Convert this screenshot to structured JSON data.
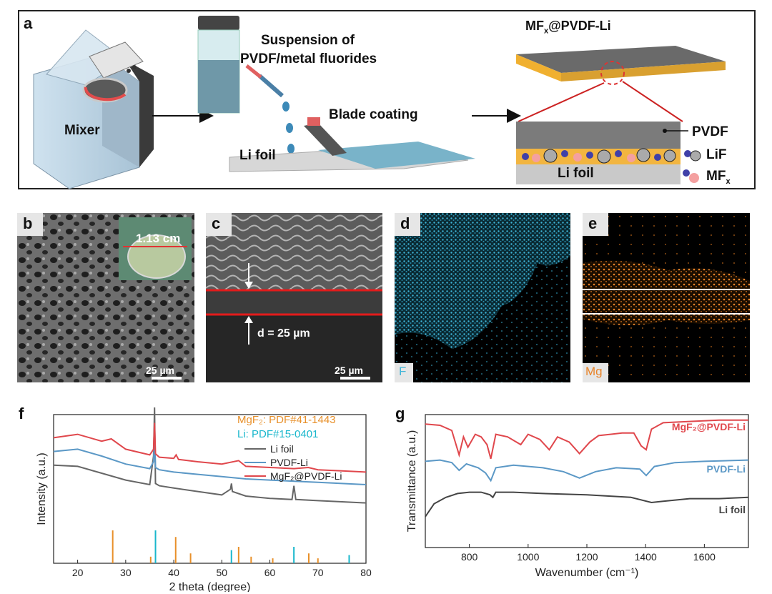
{
  "panel_a": {
    "letter": "a",
    "mixer_label": "Mixer",
    "suspension_label_line1": "Suspension of",
    "suspension_label_line2": "PVDF/metal fluorides",
    "blade_label": "Blade coating",
    "li_foil_label": "Li foil",
    "product_title": "MF",
    "product_title_sub": "x",
    "product_title_rest": "@PVDF-Li",
    "pvdf_label": "PVDF",
    "lif_label": "LiF",
    "mfx_label": "MF",
    "mfx_sub": "x",
    "zoom_li_foil": "Li foil"
  },
  "panel_b": {
    "letter": "b",
    "inset_label": "1.13 cm",
    "scale": "25 µm"
  },
  "panel_c": {
    "letter": "c",
    "thickness": "d = 25 µm",
    "scale": "25 µm"
  },
  "panel_d": {
    "letter": "d",
    "element": "F"
  },
  "panel_e": {
    "letter": "e",
    "element": "Mg"
  },
  "panel_f": {
    "letter": "f"
  },
  "panel_g": {
    "letter": "g"
  },
  "chart_data": [
    {
      "type": "line",
      "panel": "f",
      "xlabel": "2 theta (degree)",
      "ylabel": "Intensity (a.u.)",
      "xlim": [
        15,
        80
      ],
      "xticks": [
        20,
        30,
        40,
        50,
        60,
        70,
        80
      ],
      "legend_position": "top-right",
      "ref_legend": [
        {
          "name": "MgF₂: PDF#41-1443",
          "color": "#e8902a"
        },
        {
          "name": "Li: PDF#15-0401",
          "color": "#19b7cc"
        }
      ],
      "series": [
        {
          "name": "Li foil",
          "color": "#666666",
          "x": [
            15,
            20,
            25,
            30,
            35,
            35.8,
            36,
            36.2,
            37,
            40,
            45,
            50,
            51.8,
            52,
            52.2,
            55,
            60,
            64.6,
            65,
            65.4,
            70,
            75,
            80
          ],
          "y": [
            5.2,
            5.1,
            4.5,
            3.9,
            3.5,
            6,
            10.3,
            3.6,
            3.4,
            3.2,
            2.9,
            2.6,
            3.1,
            3.6,
            2.9,
            2.5,
            2.3,
            2.2,
            3.4,
            2.2,
            2.1,
            2.0,
            1.9
          ]
        },
        {
          "name": "PVDF-Li",
          "color": "#5b98c6",
          "x": [
            15,
            20,
            25,
            30,
            35,
            35.8,
            36,
            36.2,
            37,
            40,
            45,
            50,
            55,
            60,
            65,
            70,
            75,
            80
          ],
          "y": [
            6.4,
            6.6,
            6.0,
            5.3,
            4.9,
            5.5,
            8.0,
            5.0,
            4.8,
            4.6,
            4.4,
            4.2,
            4.0,
            3.9,
            3.8,
            3.7,
            3.6,
            3.5
          ]
        },
        {
          "name": "MgF₂@PVDF-Li",
          "color": "#e0474c",
          "x": [
            15,
            20,
            25,
            27,
            30,
            35,
            35.8,
            36,
            36.2,
            37,
            40,
            40.5,
            41,
            45,
            50,
            53.5,
            55,
            60,
            65,
            68,
            70,
            75,
            80
          ],
          "y": [
            7.6,
            7.9,
            7.3,
            7.5,
            6.6,
            6.1,
            6.6,
            8.9,
            6.2,
            5.9,
            5.8,
            6.1,
            5.7,
            5.5,
            5.3,
            5.6,
            5.1,
            5.0,
            4.9,
            5.0,
            4.8,
            4.7,
            4.6
          ]
        }
      ],
      "reference_lines": {
        "MgF2": {
          "x": [
            27.3,
            35.2,
            40.4,
            43.5,
            53.5,
            56.1,
            60.6,
            68.1,
            70.0
          ],
          "h": [
            1.0,
            0.2,
            0.8,
            0.3,
            0.5,
            0.2,
            0.15,
            0.3,
            0.15
          ]
        },
        "Li": {
          "x": [
            36.2,
            52.0,
            65.0,
            76.5
          ],
          "h": [
            1.0,
            0.4,
            0.5,
            0.25
          ]
        }
      }
    },
    {
      "type": "line",
      "panel": "g",
      "xlabel": "Wavenumber (cm⁻¹)",
      "ylabel": "Transmittance (a.u.)",
      "xlim": [
        650,
        1750
      ],
      "xticks": [
        800,
        1000,
        1200,
        1400,
        1600
      ],
      "series": [
        {
          "name": "MgF₂@PVDF-Li",
          "color": "#e0474c",
          "x": [
            650,
            700,
            740,
            765,
            780,
            795,
            820,
            840,
            860,
            873,
            890,
            930,
            975,
            1000,
            1040,
            1072,
            1100,
            1140,
            1175,
            1210,
            1240,
            1280,
            1320,
            1360,
            1385,
            1402,
            1420,
            1460,
            1550,
            1650,
            1750
          ],
          "y": [
            9.6,
            9.5,
            9.1,
            7.2,
            8.6,
            7.8,
            8.8,
            8.6,
            8.0,
            6.9,
            8.8,
            8.6,
            8.0,
            8.8,
            8.4,
            7.6,
            8.6,
            8.2,
            7.3,
            8.2,
            8.7,
            8.8,
            8.9,
            8.9,
            7.9,
            7.6,
            9.2,
            9.7,
            9.8,
            9.9,
            9.9
          ]
        },
        {
          "name": "PVDF-Li",
          "color": "#5b98c6",
          "x": [
            650,
            700,
            740,
            765,
            790,
            830,
            855,
            873,
            890,
            950,
            1050,
            1120,
            1175,
            1230,
            1300,
            1380,
            1402,
            1430,
            1500,
            1600,
            1750
          ],
          "y": [
            6.7,
            6.8,
            6.6,
            6.0,
            6.5,
            6.2,
            5.8,
            5.2,
            6.2,
            6.4,
            6.2,
            5.9,
            5.4,
            5.9,
            6.2,
            6.1,
            5.6,
            6.3,
            6.6,
            6.7,
            6.8
          ]
        },
        {
          "name": "Li foil",
          "color": "#444444",
          "x": [
            650,
            680,
            720,
            760,
            800,
            840,
            870,
            880,
            890,
            950,
            1050,
            1200,
            1350,
            1420,
            1460,
            1550,
            1650,
            1750
          ],
          "y": [
            2.4,
            3.4,
            3.9,
            4.2,
            4.3,
            4.3,
            4.1,
            3.9,
            4.3,
            4.3,
            4.2,
            4.1,
            3.9,
            3.5,
            3.6,
            3.8,
            3.8,
            3.9
          ]
        }
      ]
    }
  ]
}
